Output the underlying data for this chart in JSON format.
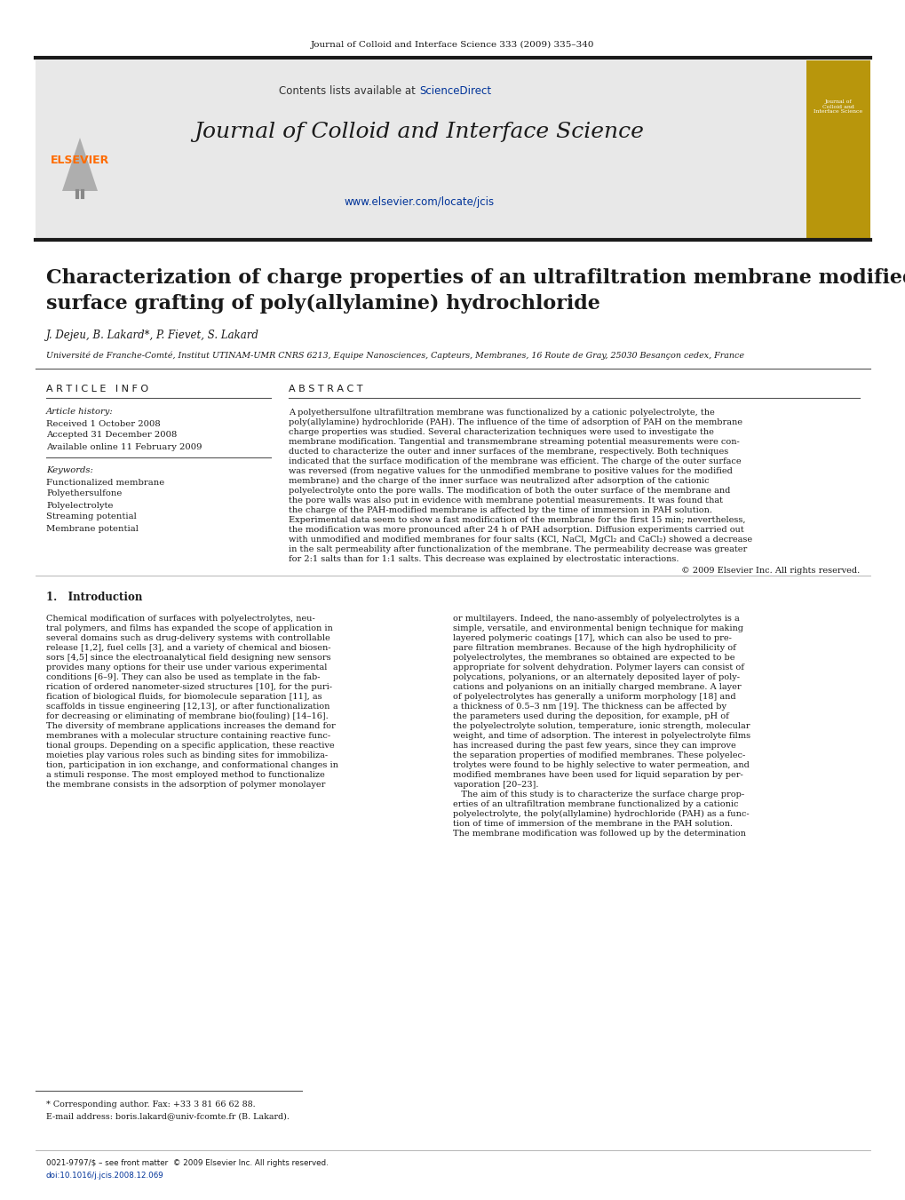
{
  "figsize": [
    10.2,
    13.51
  ],
  "dpi": 100,
  "bg_color": "#ffffff",
  "header_journal_text": "Journal of Colloid and Interface Science 333 (2009) 335–340",
  "header_bar_color": "#1a1a1a",
  "elsevier_color": "#FF6B00",
  "sciencedirect_color": "#003399",
  "journal_title": "Journal of Colloid and Interface Science",
  "journal_url": "www.elsevier.com/locate/jcis",
  "url_color": "#003399",
  "header_bg": "#e8e8e8",
  "gold_bg": "#B8960C",
  "article_title_line1": "Characterization of charge properties of an ultrafiltration membrane modified by",
  "article_title_line2": "surface grafting of poly(allylamine) hydrochloride",
  "authors": "J. Dejeu, B. Lakard*, P. Fievet, S. Lakard",
  "affiliation": "Université de Franche-Comté, Institut UTINAM-UMR CNRS 6213, Equipe Nanosciences, Capteurs, Membranes, 16 Route de Gray, 25030 Besançon cedex, France",
  "article_info_header": "A R T I C L E   I N F O",
  "abstract_header": "A B S T R A C T",
  "article_history_header": "Article history:",
  "received": "Received 1 October 2008",
  "accepted": "Accepted 31 December 2008",
  "available": "Available online 11 February 2009",
  "keywords_header": "Keywords:",
  "keywords": [
    "Functionalized membrane",
    "Polyethersulfone",
    "Polyelectrolyte",
    "Streaming potential",
    "Membrane potential"
  ],
  "abs_lines": [
    "A polyethersulfone ultrafiltration membrane was functionalized by a cationic polyelectrolyte, the",
    "poly(allylamine) hydrochloride (PAH). The influence of the time of adsorption of PAH on the membrane",
    "charge properties was studied. Several characterization techniques were used to investigate the",
    "membrane modification. Tangential and transmembrane streaming potential measurements were con-",
    "ducted to characterize the outer and inner surfaces of the membrane, respectively. Both techniques",
    "indicated that the surface modification of the membrane was efficient. The charge of the outer surface",
    "was reversed (from negative values for the unmodified membrane to positive values for the modified",
    "membrane) and the charge of the inner surface was neutralized after adsorption of the cationic",
    "polyelectrolyte onto the pore walls. The modification of both the outer surface of the membrane and",
    "the pore walls was also put in evidence with membrane potential measurements. It was found that",
    "the charge of the PAH-modified membrane is affected by the time of immersion in PAH solution.",
    "Experimental data seem to show a fast modification of the membrane for the first 15 min; nevertheless,",
    "the modification was more pronounced after 24 h of PAH adsorption. Diffusion experiments carried out",
    "with unmodified and modified membranes for four salts (KCl, NaCl, MgCl₂ and CaCl₂) showed a decrease",
    "in the salt permeability after functionalization of the membrane. The permeability decrease was greater",
    "for 2:1 salts than for 1:1 salts. This decrease was explained by electrostatic interactions."
  ],
  "copyright_abstract": "© 2009 Elsevier Inc. All rights reserved.",
  "intro_header": "1.   Introduction",
  "intro_col1_lines": [
    "Chemical modification of surfaces with polyelectrolytes, neu-",
    "tral polymers, and films has expanded the scope of application in",
    "several domains such as drug-delivery systems with controllable",
    "release [1,2], fuel cells [3], and a variety of chemical and biosen-",
    "sors [4,5] since the electroanalytical field designing new sensors",
    "provides many options for their use under various experimental",
    "conditions [6–9]. They can also be used as template in the fab-",
    "rication of ordered nanometer-sized structures [10], for the puri-",
    "fication of biological fluids, for biomolecule separation [11], as",
    "scaffolds in tissue engineering [12,13], or after functionalization",
    "for decreasing or eliminating of membrane bio(fouling) [14–16].",
    "The diversity of membrane applications increases the demand for",
    "membranes with a molecular structure containing reactive func-",
    "tional groups. Depending on a specific application, these reactive",
    "moieties play various roles such as binding sites for immobiliza-",
    "tion, participation in ion exchange, and conformational changes in",
    "a stimuli response. The most employed method to functionalize",
    "the membrane consists in the adsorption of polymer monolayer"
  ],
  "intro_col2_lines": [
    "or multilayers. Indeed, the nano-assembly of polyelectrolytes is a",
    "simple, versatile, and environmental benign technique for making",
    "layered polymeric coatings [17], which can also be used to pre-",
    "pare filtration membranes. Because of the high hydrophilicity of",
    "polyelectrolytes, the membranes so obtained are expected to be",
    "appropriate for solvent dehydration. Polymer layers can consist of",
    "polycations, polyanions, or an alternately deposited layer of poly-",
    "cations and polyanions on an initially charged membrane. A layer",
    "of polyelectrolytes has generally a uniform morphology [18] and",
    "a thickness of 0.5–3 nm [19]. The thickness can be affected by",
    "the parameters used during the deposition, for example, pH of",
    "the polyelectrolyte solution, temperature, ionic strength, molecular",
    "weight, and time of adsorption. The interest in polyelectrolyte films",
    "has increased during the past few years, since they can improve",
    "the separation properties of modified membranes. These polyelec-",
    "trolytes were found to be highly selective to water permeation, and",
    "modified membranes have been used for liquid separation by per-",
    "vaporation [20–23].",
    "   The aim of this study is to characterize the surface charge prop-",
    "erties of an ultrafiltration membrane functionalized by a cationic",
    "polyelectrolyte, the poly(allylamine) hydrochloride (PAH) as a func-",
    "tion of time of immersion of the membrane in the PAH solution.",
    "The membrane modification was followed up by the determination"
  ],
  "footnote_star": "* Corresponding author. Fax: +33 3 81 66 62 88.",
  "footnote_email": "E-mail address: boris.lakard@univ-fcomte.fr (B. Lakard).",
  "footer_issn": "0021-9797/$ – see front matter  © 2009 Elsevier Inc. All rights reserved.",
  "footer_doi": "doi:10.1016/j.jcis.2008.12.069"
}
